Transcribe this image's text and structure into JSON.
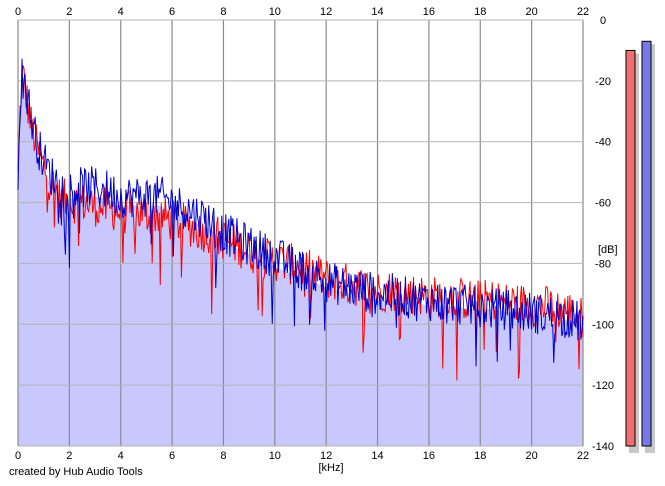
{
  "chart_data": {
    "type": "area",
    "x_unit": "[kHz]",
    "y_unit": "[dB]",
    "xlim": [
      0,
      22
    ],
    "ylim": [
      -140,
      0
    ],
    "x_ticks": [
      "0",
      "2",
      "4",
      "6",
      "8",
      "10",
      "12",
      "14",
      "16",
      "18",
      "20",
      "22"
    ],
    "y_ticks": [
      "0",
      "-20",
      "-40",
      "-60",
      "-80",
      "-100",
      "-120",
      "-140"
    ],
    "grid": true,
    "colors": {
      "fill": "#c8c8ff",
      "red_channel": "#ff0000",
      "blue_channel": "#0000cc",
      "meter_red": "#f07070",
      "meter_blue": "#7878e8"
    },
    "series": [
      {
        "x": [
          0,
          0.1,
          0.2,
          0.3,
          0.5,
          0.8,
          1.2,
          1.6,
          2,
          2.5,
          3,
          3.5,
          4,
          4.5,
          5,
          5.5,
          6,
          6.5,
          7,
          7.5,
          8,
          8.5,
          9,
          9.5,
          10,
          10.5,
          11,
          11.5,
          12,
          12.5,
          13,
          13.5,
          14,
          14.5,
          15,
          15.5,
          16,
          16.5,
          17,
          17.5,
          18,
          18.5,
          19,
          19.5,
          20,
          20.5,
          21,
          21.5,
          22
        ],
        "values": [
          -52,
          -25,
          -18,
          -24,
          -34,
          -44,
          -52,
          -58,
          -60,
          -60,
          -61,
          -62,
          -63,
          -63,
          -64,
          -64,
          -66,
          -67,
          -69,
          -70,
          -72,
          -74,
          -76,
          -78,
          -79,
          -80,
          -81,
          -83,
          -85,
          -86,
          -87,
          -88,
          -89,
          -89,
          -90,
          -90,
          -91,
          -91,
          -91,
          -92,
          -92,
          -92,
          -93,
          -93,
          -94,
          -94,
          -95,
          -96,
          -98
        ]
      },
      {
        "x": [
          0,
          0.1,
          0.2,
          0.3,
          0.5,
          0.8,
          1.2,
          1.6,
          2,
          2.5,
          3,
          3.5,
          4,
          4.5,
          5,
          5.5,
          6,
          6.5,
          7,
          7.5,
          8,
          8.5,
          9,
          9.5,
          10,
          10.5,
          11,
          11.5,
          12,
          12.5,
          13,
          13.5,
          14,
          14.5,
          15,
          15.5,
          16,
          16.5,
          17,
          17.5,
          18,
          18.5,
          19,
          19.5,
          20,
          20.5,
          21,
          21.5,
          22
        ],
        "values": [
          -50,
          -22,
          -16,
          -22,
          -32,
          -42,
          -50,
          -54,
          -56,
          -55,
          -55,
          -56,
          -58,
          -58,
          -58,
          -58,
          -60,
          -62,
          -64,
          -66,
          -70,
          -72,
          -74,
          -76,
          -78,
          -80,
          -82,
          -84,
          -86,
          -87,
          -88,
          -89,
          -90,
          -90,
          -91,
          -92,
          -92,
          -93,
          -93,
          -94,
          -94,
          -95,
          -95,
          -96,
          -96,
          -97,
          -97,
          -98,
          -100
        ]
      }
    ],
    "meters": [
      {
        "level_db": -10
      },
      {
        "level_db": -7
      }
    ]
  },
  "credit": "created by Hub Audio Tools"
}
